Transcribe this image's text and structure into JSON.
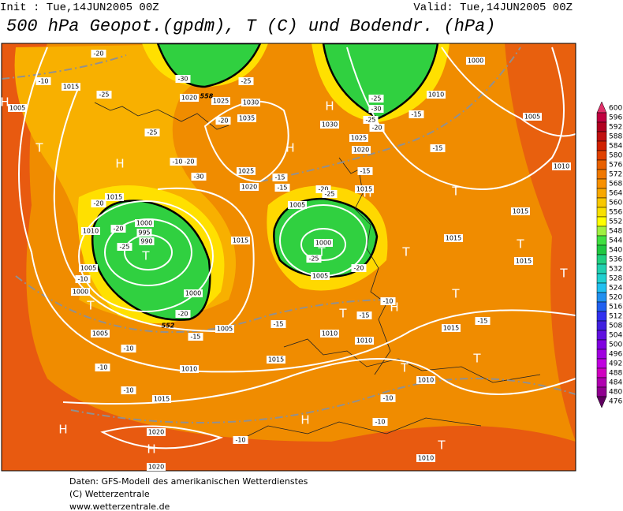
{
  "header": {
    "init": "Init : Tue,14JUN2005 00Z",
    "valid": "Valid: Tue,14JUN2005 00Z",
    "title": "500 hPa Geopot.(gpdm), T (C) und Bodendr. (hPa)"
  },
  "colorbar": {
    "labels": [
      600,
      596,
      592,
      588,
      584,
      580,
      576,
      572,
      568,
      564,
      560,
      556,
      552,
      548,
      544,
      540,
      536,
      532,
      528,
      524,
      520,
      516,
      512,
      508,
      504,
      500,
      496,
      492,
      488,
      484,
      480,
      476
    ],
    "colors": [
      "#e0306a",
      "#c00040",
      "#b00020",
      "#c01010",
      "#d02000",
      "#e04000",
      "#e86000",
      "#f07800",
      "#f89000",
      "#f8a800",
      "#f8c800",
      "#f8e000",
      "#ffff00",
      "#a0f040",
      "#40e040",
      "#20c840",
      "#20d080",
      "#20d0b0",
      "#20d0d0",
      "#20c0f0",
      "#2090f0",
      "#2060f0",
      "#3030f0",
      "#4020e0",
      "#6010e0",
      "#8000e0",
      "#a000e0",
      "#c000e0",
      "#d000c0",
      "#b000b0",
      "#900090",
      "#600060"
    ]
  },
  "map": {
    "pressure_centers": [
      "H",
      "T",
      "H",
      "T",
      "T",
      "H",
      "H",
      "T",
      "T",
      "T",
      "T",
      "T",
      "T",
      "H",
      "T",
      "T",
      "T",
      "H",
      "H",
      "H",
      "T",
      "H"
    ],
    "isobar_labels": [
      1015,
      1005,
      1020,
      1025,
      1030,
      1035,
      1030,
      1025,
      1020,
      1025,
      1020,
      1015,
      1010,
      1000,
      995,
      990,
      1005,
      1000,
      1000,
      1005,
      1005,
      1015,
      1005,
      1000,
      1005,
      1010,
      1010,
      1015,
      1010,
      1015,
      1020,
      1020,
      1010,
      1010,
      1015,
      1015,
      1015,
      1015,
      1005,
      1010,
      1000,
      1010,
      1015
    ],
    "temperature_labels": [
      -10,
      -25,
      -30,
      -25,
      -20,
      -25,
      -20,
      -30,
      -20,
      -20,
      -25,
      -10,
      -20,
      -15,
      -15,
      -10,
      -10,
      -10,
      -10,
      -10,
      -10,
      -15,
      -15,
      -20,
      -25,
      -15,
      -15,
      -25,
      -20,
      -10,
      -15,
      -15,
      -25,
      -30,
      -25,
      -20,
      -15,
      -20,
      -10
    ],
    "contour_labels": [
      552,
      558
    ]
  },
  "footer": {
    "source": "Daten: GFS-Modell des amerikanischen Wetterdienstes",
    "copyright": "(C) Wetterzentrale",
    "url": "www.wetterzentrale.de"
  }
}
